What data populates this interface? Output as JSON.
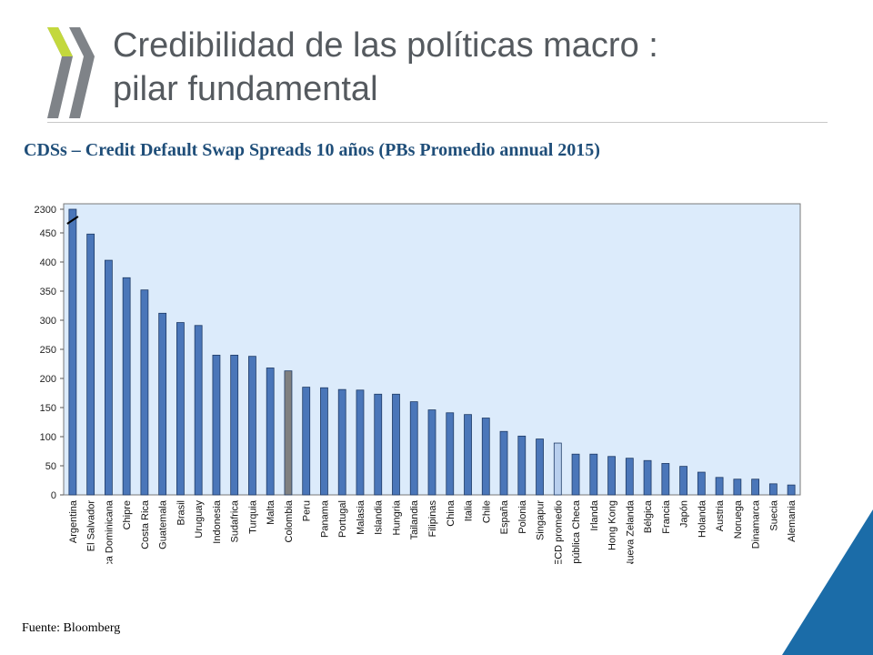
{
  "header": {
    "title_line1": "Credibilidad de las políticas macro :",
    "title_line2": "pilar fundamental"
  },
  "chart_data": {
    "type": "bar",
    "title": "CDSs – Credit Default Swap Spreads 10 años (PBs Promedio annual 2015)",
    "xlabel": "",
    "ylabel": "",
    "ylim": [
      0,
      2300
    ],
    "axis_break": {
      "from": 500,
      "to": 2300
    },
    "y_ticks": [
      {
        "value": 0,
        "label": "0"
      },
      {
        "value": 50,
        "label": "50"
      },
      {
        "value": 100,
        "label": "100"
      },
      {
        "value": 150,
        "label": "150"
      },
      {
        "value": 200,
        "label": "200"
      },
      {
        "value": 250,
        "label": "250"
      },
      {
        "value": 300,
        "label": "300"
      },
      {
        "value": 350,
        "label": "350"
      },
      {
        "value": 400,
        "label": "400"
      },
      {
        "value": 450,
        "label": "450"
      },
      {
        "value": 2300,
        "label": "2300"
      }
    ],
    "grid": false,
    "categories": [
      "Argentina",
      "El Salvador",
      "República Dominicana",
      "Chipre",
      "Costa Rica",
      "Guatemala",
      "Brasil",
      "Uruguay",
      "Indonesia",
      "Sudafrica",
      "Turquia",
      "Malta",
      "Colombia",
      "Peru",
      "Panama",
      "Portugal",
      "Malasia",
      "Islandia",
      "Hungria",
      "Tailandia",
      "Filipinas",
      "China",
      "Italia",
      "Chile",
      "España",
      "Polonia",
      "Singapur",
      "OECD promedio",
      "República Checa",
      "Irlanda",
      "Hong Kong",
      "Nueva Zelanda",
      "Bélgica",
      "Francia",
      "Japón",
      "Holanda",
      "Austria",
      "Noruega",
      "Dinamarca",
      "Suecia",
      "Alemania"
    ],
    "values": [
      2300,
      448,
      403,
      373,
      352,
      312,
      296,
      291,
      240,
      240,
      238,
      218,
      213,
      185,
      184,
      181,
      180,
      173,
      173,
      160,
      146,
      141,
      138,
      132,
      109,
      101,
      96,
      89,
      70,
      70,
      66,
      63,
      59,
      54,
      49,
      39,
      30,
      27,
      27,
      19,
      17
    ],
    "colors": {
      "default": "#4a76b9",
      "stroke": "#1f3b66",
      "highlight": "#808080",
      "average": "#b8cfee",
      "plot_bg": "#dcebfb"
    },
    "highlight": [
      "Colombia"
    ],
    "average": [
      "OECD promedio"
    ]
  },
  "source": "Fuente: Bloomberg",
  "colors": {
    "title": "#555a5f",
    "subtitle": "#1f4e79",
    "logo": "#7f8388",
    "logo_accent": "#c3d83d",
    "corner": "#1b6ca8"
  }
}
